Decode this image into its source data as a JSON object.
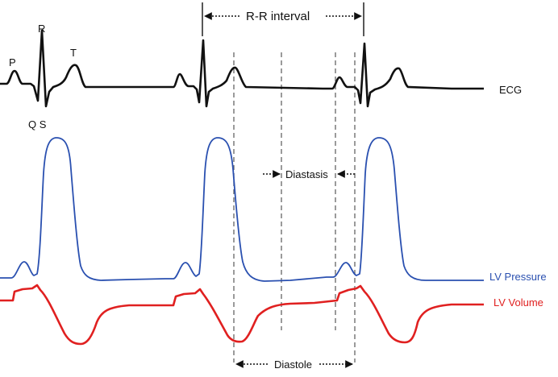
{
  "labels": {
    "p": "P",
    "r": "R",
    "t": "T",
    "qs": "Q S",
    "rr_interval": "R-R interval",
    "ecg": "ECG",
    "diastasis": "Diastasis",
    "lv_pressure": "LV Pressure",
    "lv_volume": "LV Volume",
    "diastole": "Diastole"
  },
  "colors": {
    "ecg": "#111111",
    "lv_pressure": "#2a50b0",
    "lv_volume": "#e02020",
    "guide": "#707070"
  }
}
